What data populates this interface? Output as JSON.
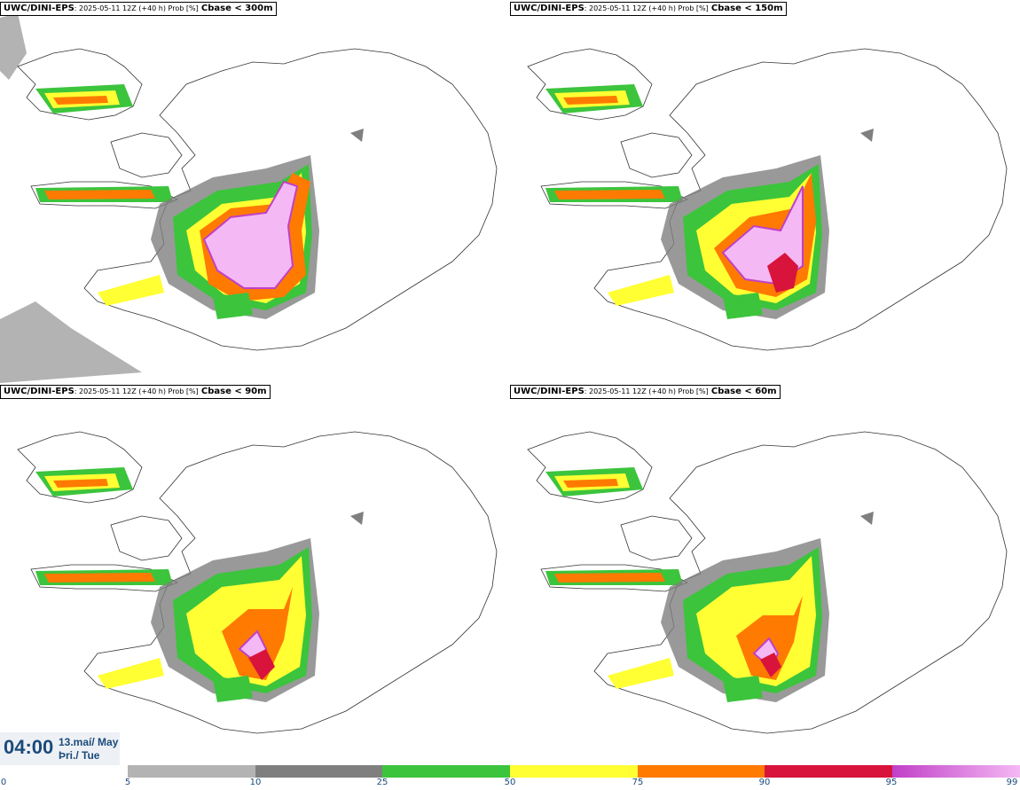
{
  "panels": [
    {
      "model": "UWC/DINI-EPS",
      "subtitle": ": 2025-05-11 12Z (+40 h) Prob [%]",
      "threshold": "Cbase < 300m"
    },
    {
      "model": "UWC/DINI-EPS",
      "subtitle": ": 2025-05-11 12Z (+40 h) Prob [%]",
      "threshold": "Cbase < 150m"
    },
    {
      "model": "UWC/DINI-EPS",
      "subtitle": ": 2025-05-11 12Z (+40 h) Prob [%]",
      "threshold": "Cbase < 90m"
    },
    {
      "model": "UWC/DINI-EPS",
      "subtitle": ": 2025-05-11 12Z (+40 h) Prob [%]",
      "threshold": "Cbase < 60m"
    }
  ],
  "time": {
    "clock": "04:00",
    "date_line1": "13.maí/ May",
    "date_line2": "Þri./ Tue"
  },
  "legend": {
    "ticks": [
      "0",
      "5",
      "10",
      "25",
      "50",
      "75",
      "90",
      "95",
      "99"
    ],
    "colors": {
      "5-10": "#b3b3b3",
      "10-25": "#7f7f7f",
      "25-50": "#3cc43c",
      "50-75": "#ffff33",
      "75-90": "#ff7a00",
      "90-95": "#d8143c",
      "95-99": "#c040c8",
      "99": "#f4b8f4"
    }
  }
}
